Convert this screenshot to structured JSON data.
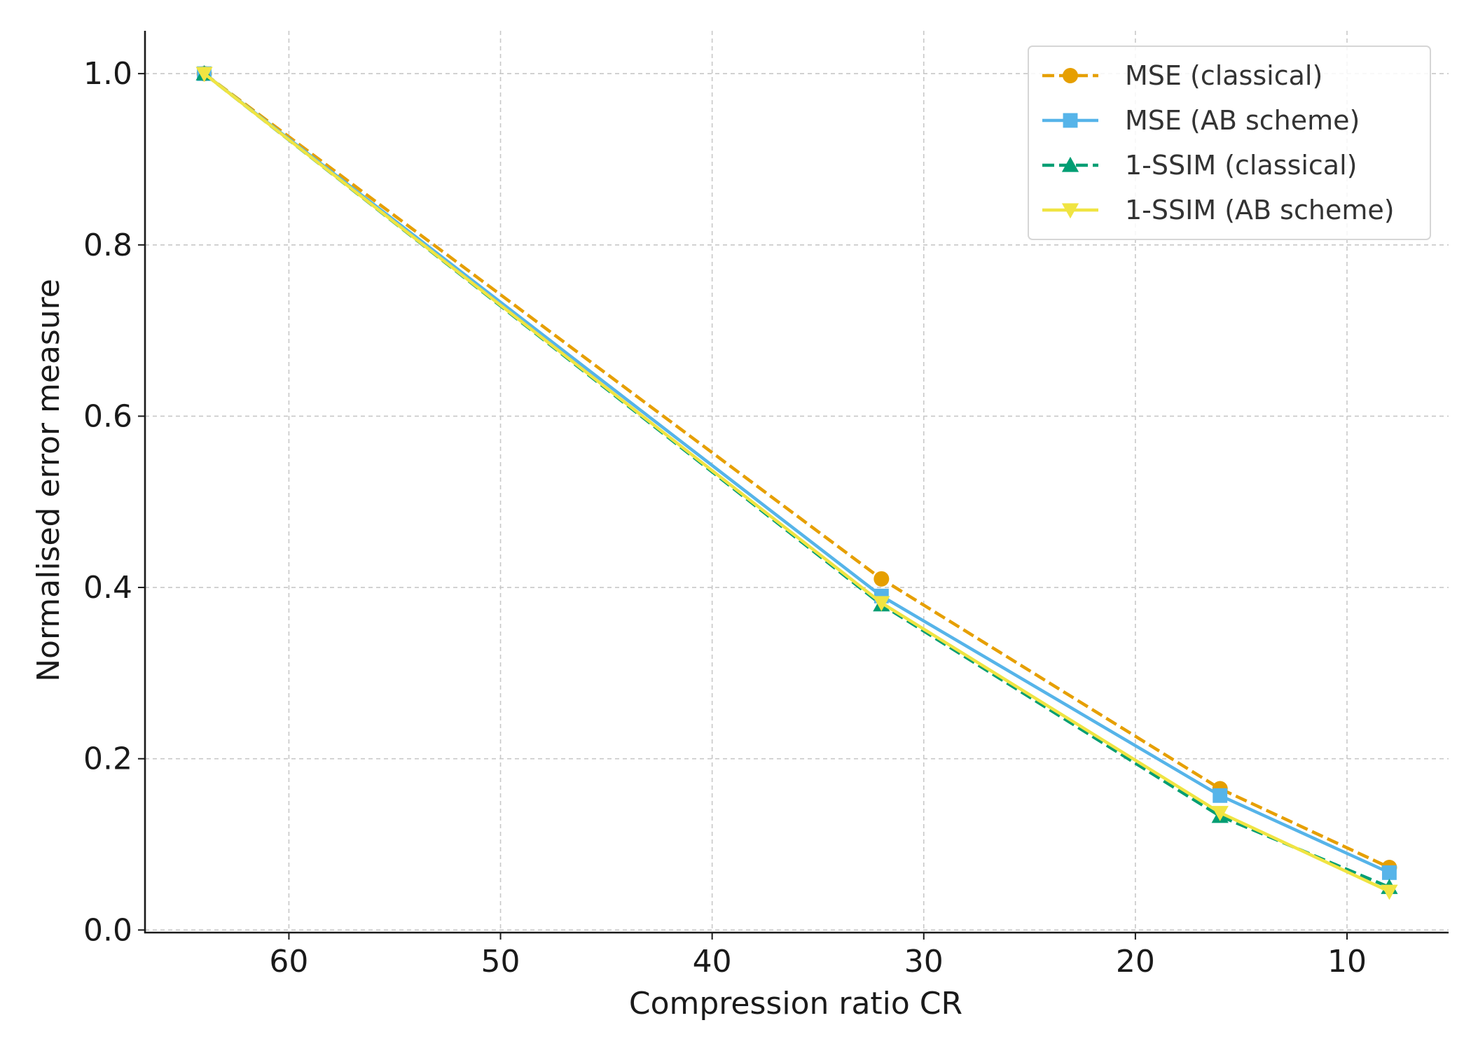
{
  "chart_data": {
    "type": "line",
    "title": "",
    "xlabel": "Compression ratio CR",
    "ylabel": "Normalised error measure",
    "x": [
      64,
      32,
      16,
      8
    ],
    "xlim": [
      66.8,
      5.2
    ],
    "ylim": [
      -0.003,
      1.05
    ],
    "xticks": [
      60,
      50,
      40,
      30,
      20,
      10
    ],
    "xtick_labels": [
      "60",
      "50",
      "40",
      "30",
      "20",
      "10"
    ],
    "yticks": [
      0.0,
      0.2,
      0.4,
      0.6,
      0.8,
      1.0
    ],
    "ytick_labels": [
      "0.0",
      "0.2",
      "0.4",
      "0.6",
      "0.8",
      "1.0"
    ],
    "x_inverted": true,
    "grid": true,
    "legend_position": "top-right",
    "series": [
      {
        "name": "MSE (classical)",
        "values": [
          1.0,
          0.41,
          0.165,
          0.073
        ],
        "color": "#E69F00",
        "line_style": "dashed",
        "marker": "circle"
      },
      {
        "name": "MSE (AB scheme)",
        "values": [
          1.0,
          0.39,
          0.157,
          0.067
        ],
        "color": "#56B4E9",
        "line_style": "solid",
        "marker": "square"
      },
      {
        "name": "1-SSIM (classical)",
        "values": [
          1.0,
          0.38,
          0.133,
          0.05
        ],
        "color": "#009E73",
        "line_style": "dashed",
        "marker": "triangle-up"
      },
      {
        "name": "1-SSIM (AB scheme)",
        "values": [
          1.0,
          0.382,
          0.137,
          0.045
        ],
        "color": "#F0E442",
        "line_style": "solid",
        "marker": "triangle-down"
      }
    ]
  }
}
